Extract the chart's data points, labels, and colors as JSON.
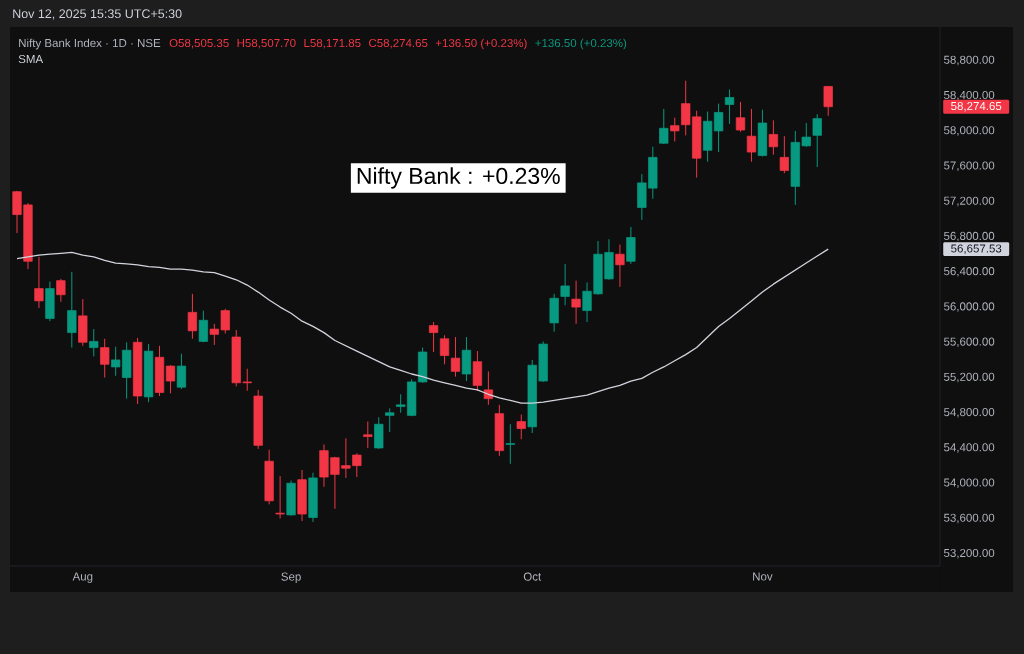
{
  "chart_data": {
    "type": "candlestick",
    "title": "Nifty Bank Index · 1D · NSE",
    "categories": [
      null,
      null,
      null,
      null,
      null,
      null,
      "Aug",
      null,
      null,
      null,
      null,
      null,
      null,
      null,
      null,
      null,
      null,
      null,
      null,
      null,
      null,
      null,
      null,
      null,
      null,
      "Sep",
      null,
      null,
      null,
      null,
      null,
      null,
      null,
      null,
      null,
      null,
      null,
      null,
      null,
      null,
      null,
      null,
      null,
      null,
      null,
      null,
      null,
      "Oct",
      null,
      null,
      null,
      null,
      null,
      null,
      null,
      null,
      null,
      null,
      null,
      null,
      null,
      null,
      null,
      null,
      null,
      null,
      null,
      null,
      "Nov",
      null,
      null,
      null,
      null,
      null,
      null
    ],
    "ohlc": [
      [
        57310,
        57320,
        56840,
        57050
      ],
      [
        57160,
        57180,
        56430,
        56520
      ],
      [
        56210,
        56570,
        55990,
        56070
      ],
      [
        55870,
        56290,
        55840,
        56210
      ],
      [
        56300,
        56320,
        56060,
        56140
      ],
      [
        55710,
        56400,
        55540,
        55960
      ],
      [
        55900,
        56090,
        55560,
        55600
      ],
      [
        55540,
        55750,
        55440,
        55610
      ],
      [
        55540,
        55640,
        55200,
        55350
      ],
      [
        55320,
        55550,
        55220,
        55400
      ],
      [
        55200,
        55600,
        54960,
        55510
      ],
      [
        55600,
        55650,
        54900,
        54990
      ],
      [
        54980,
        55580,
        54920,
        55500
      ],
      [
        55430,
        55560,
        54990,
        55030
      ],
      [
        55330,
        55340,
        55020,
        55160
      ],
      [
        55090,
        55470,
        55070,
        55330
      ],
      [
        55940,
        56150,
        55640,
        55730
      ],
      [
        55610,
        55960,
        55600,
        55850
      ],
      [
        55750,
        55810,
        55570,
        55690
      ],
      [
        55960,
        55980,
        55700,
        55740
      ],
      [
        55660,
        55740,
        55100,
        55140
      ],
      [
        55150,
        55300,
        55050,
        55140
      ],
      [
        54990,
        55060,
        54390,
        54430
      ],
      [
        54250,
        54380,
        53760,
        53800
      ],
      [
        53660,
        54080,
        53600,
        53650
      ],
      [
        53640,
        54030,
        53630,
        54000
      ],
      [
        54040,
        54150,
        53570,
        53650
      ],
      [
        53610,
        54120,
        53560,
        54060
      ],
      [
        54370,
        54440,
        53960,
        54070
      ],
      [
        54290,
        54300,
        53710,
        54100
      ],
      [
        54200,
        54510,
        54060,
        54170
      ],
      [
        54320,
        54340,
        54070,
        54200
      ],
      [
        54550,
        54700,
        54400,
        54530
      ],
      [
        54400,
        54750,
        54390,
        54670
      ],
      [
        54770,
        54850,
        54580,
        54800
      ],
      [
        54870,
        55010,
        54800,
        54890
      ],
      [
        54770,
        55180,
        54760,
        55150
      ],
      [
        55150,
        55540,
        55140,
        55490
      ],
      [
        55790,
        55830,
        55490,
        55710
      ],
      [
        55640,
        55680,
        55350,
        55450
      ],
      [
        55420,
        55660,
        55210,
        55270
      ],
      [
        55240,
        55660,
        55160,
        55510
      ],
      [
        55380,
        55500,
        55050,
        55110
      ],
      [
        55060,
        55270,
        54890,
        54960
      ],
      [
        54790,
        54890,
        54310,
        54370
      ],
      [
        54440,
        54670,
        54220,
        54450
      ],
      [
        54700,
        54780,
        54500,
        54620
      ],
      [
        54640,
        55400,
        54570,
        55340
      ],
      [
        55160,
        55610,
        55150,
        55580
      ],
      [
        55820,
        56150,
        55720,
        56100
      ],
      [
        56120,
        56490,
        56020,
        56240
      ],
      [
        56090,
        56300,
        55810,
        56000
      ],
      [
        55960,
        56280,
        55830,
        56180
      ],
      [
        56150,
        56750,
        56140,
        56600
      ],
      [
        56320,
        56770,
        56310,
        56620
      ],
      [
        56600,
        56710,
        56230,
        56480
      ],
      [
        56520,
        56910,
        56490,
        56790
      ],
      [
        57130,
        57510,
        56990,
        57410
      ],
      [
        57350,
        57820,
        57230,
        57700
      ],
      [
        57860,
        58250,
        57850,
        58030
      ],
      [
        58060,
        58150,
        57880,
        58000
      ],
      [
        58310,
        58570,
        57950,
        58070
      ],
      [
        58160,
        58230,
        57470,
        57690
      ],
      [
        57780,
        58220,
        57650,
        58110
      ],
      [
        58000,
        58310,
        57760,
        58210
      ],
      [
        58300,
        58470,
        58080,
        58380
      ],
      [
        58150,
        58330,
        57990,
        58010
      ],
      [
        57940,
        58250,
        57650,
        57760
      ],
      [
        57720,
        58240,
        57710,
        58090
      ],
      [
        57960,
        58120,
        57730,
        57820
      ],
      [
        57700,
        57940,
        57520,
        57550
      ],
      [
        57370,
        58000,
        57160,
        57870
      ],
      [
        57830,
        58090,
        57820,
        57930
      ],
      [
        57950,
        58190,
        57590,
        58140
      ],
      [
        58505.35,
        58507.7,
        58171.85,
        58274.65
      ]
    ],
    "colors": [
      "#f23645",
      "#f23645",
      "#f23645",
      "#089981",
      "#f23645",
      "#089981",
      "#f23645",
      "#089981",
      "#f23645",
      "#089981",
      "#089981",
      "#f23645",
      "#089981",
      "#f23645",
      "#f23645",
      "#089981",
      "#f23645",
      "#089981",
      "#f23645",
      "#f23645",
      "#f23645",
      "#f23645",
      "#f23645",
      "#f23645",
      "#f23645",
      "#089981",
      "#f23645",
      "#089981",
      "#f23645",
      "#f23645",
      "#f23645",
      "#f23645",
      "#f23645",
      "#089981",
      "#089981",
      "#089981",
      "#089981",
      "#089981",
      "#f23645",
      "#f23645",
      "#f23645",
      "#089981",
      "#f23645",
      "#f23645",
      "#f23645",
      "#089981",
      "#f23645",
      "#089981",
      "#089981",
      "#089981",
      "#089981",
      "#f23645",
      "#089981",
      "#089981",
      "#089981",
      "#f23645",
      "#089981",
      "#089981",
      "#089981",
      "#089981",
      "#f23645",
      "#f23645",
      "#f23645",
      "#089981",
      "#089981",
      "#089981",
      "#f23645",
      "#f23645",
      "#089981",
      "#f23645",
      "#f23645",
      "#089981",
      "#089981",
      "#089981",
      "#f23645"
    ],
    "series": [
      {
        "type": "line",
        "name": "SMA",
        "color": "#d1d4dc",
        "values": [
          56550,
          56570,
          56590,
          56600,
          56610,
          56620,
          56590,
          56570,
          56530,
          56500,
          56490,
          56480,
          56460,
          56450,
          56430,
          56430,
          56420,
          56400,
          56390,
          56350,
          56310,
          56250,
          56170,
          56080,
          56000,
          55930,
          55840,
          55780,
          55710,
          55620,
          55560,
          55500,
          55440,
          55380,
          55320,
          55280,
          55240,
          55210,
          55170,
          55140,
          55110,
          55080,
          55060,
          55010,
          54970,
          54940,
          54910,
          54910,
          54920,
          54940,
          54960,
          54980,
          55000,
          55040,
          55080,
          55110,
          55160,
          55190,
          55260,
          55320,
          55390,
          55460,
          55540,
          55660,
          55780,
          55870,
          55970,
          56070,
          56170,
          56260,
          56340,
          56420,
          56500,
          56580,
          56657.53
        ]
      }
    ],
    "ylim": [
      53060,
      59180
    ],
    "yticks": [
      {
        "value": 53200,
        "label": "53,200.00"
      },
      {
        "value": 53600,
        "label": "53,600.00"
      },
      {
        "value": 54000,
        "label": "54,000.00"
      },
      {
        "value": 54400,
        "label": "54,400.00"
      },
      {
        "value": 54800,
        "label": "54,800.00"
      },
      {
        "value": 55200,
        "label": "55,200.00"
      },
      {
        "value": 55600,
        "label": "55,600.00"
      },
      {
        "value": 56000,
        "label": "56,000.00"
      },
      {
        "value": 56400,
        "label": "56,400.00"
      },
      {
        "value": 56800,
        "label": "56,800.00"
      },
      {
        "value": 57200,
        "label": "57,200.00"
      },
      {
        "value": 57600,
        "label": "57,600.00"
      },
      {
        "value": 58000,
        "label": "58,000.00"
      },
      {
        "value": 58400,
        "label": "58,400.00"
      },
      {
        "value": 58800,
        "label": "58,800.00"
      }
    ],
    "legend": "top left",
    "annotations": [
      "Nov 12, 2025 15:35 UTC+5:30",
      "O58,505.35",
      "H58,507.70",
      "L58,171.85",
      "C58,274.65",
      "+136.50 (+0.23%)",
      "+136.50 (+0.23%)",
      "Nifty Bank : +0.23%",
      "58,274.65",
      "56,657.53"
    ]
  }
}
